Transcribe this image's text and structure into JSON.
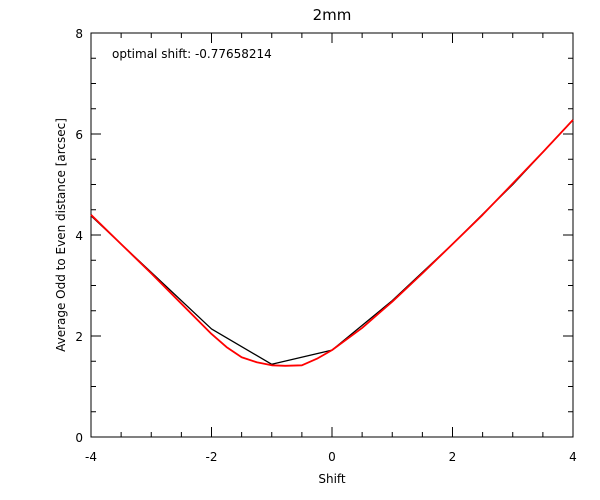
{
  "chart_data": {
    "type": "line",
    "title": "2mm",
    "xlabel": "Shift",
    "ylabel": "Average Odd to Even distance [arcsec]",
    "annotation": "optimal shift: -0.77658214",
    "xlim": [
      -4,
      4
    ],
    "ylim": [
      0,
      8
    ],
    "grid": false,
    "x_ticks": [
      -4,
      -2,
      0,
      2,
      4
    ],
    "x_tick_labels": [
      "-4",
      "-2",
      "0",
      "2",
      "4"
    ],
    "y_ticks": [
      0,
      2,
      4,
      6,
      8
    ],
    "y_tick_labels": [
      "0",
      "2",
      "4",
      "6",
      "8"
    ],
    "x_minor_step": 0.5,
    "y_minor_step": 0.5,
    "series": [
      {
        "color": "#000000",
        "x": [
          -4,
          -3,
          -2,
          -1,
          0,
          1,
          2,
          3,
          4
        ],
        "y": [
          4.38,
          3.26,
          2.14,
          1.44,
          1.72,
          2.7,
          3.82,
          5.0,
          6.28
        ]
      },
      {
        "color": "#ff0000",
        "x": [
          -4,
          -3.5,
          -3,
          -2.5,
          -2,
          -1.75,
          -1.5,
          -1.25,
          -1.0,
          -0.776,
          -0.5,
          -0.25,
          0,
          0.5,
          1,
          1.5,
          2,
          2.5,
          3,
          3.5,
          4
        ],
        "y": [
          4.4,
          3.82,
          3.24,
          2.64,
          2.04,
          1.78,
          1.58,
          1.48,
          1.42,
          1.41,
          1.42,
          1.55,
          1.72,
          2.16,
          2.68,
          3.24,
          3.82,
          4.4,
          5.02,
          5.64,
          6.28
        ]
      }
    ]
  }
}
